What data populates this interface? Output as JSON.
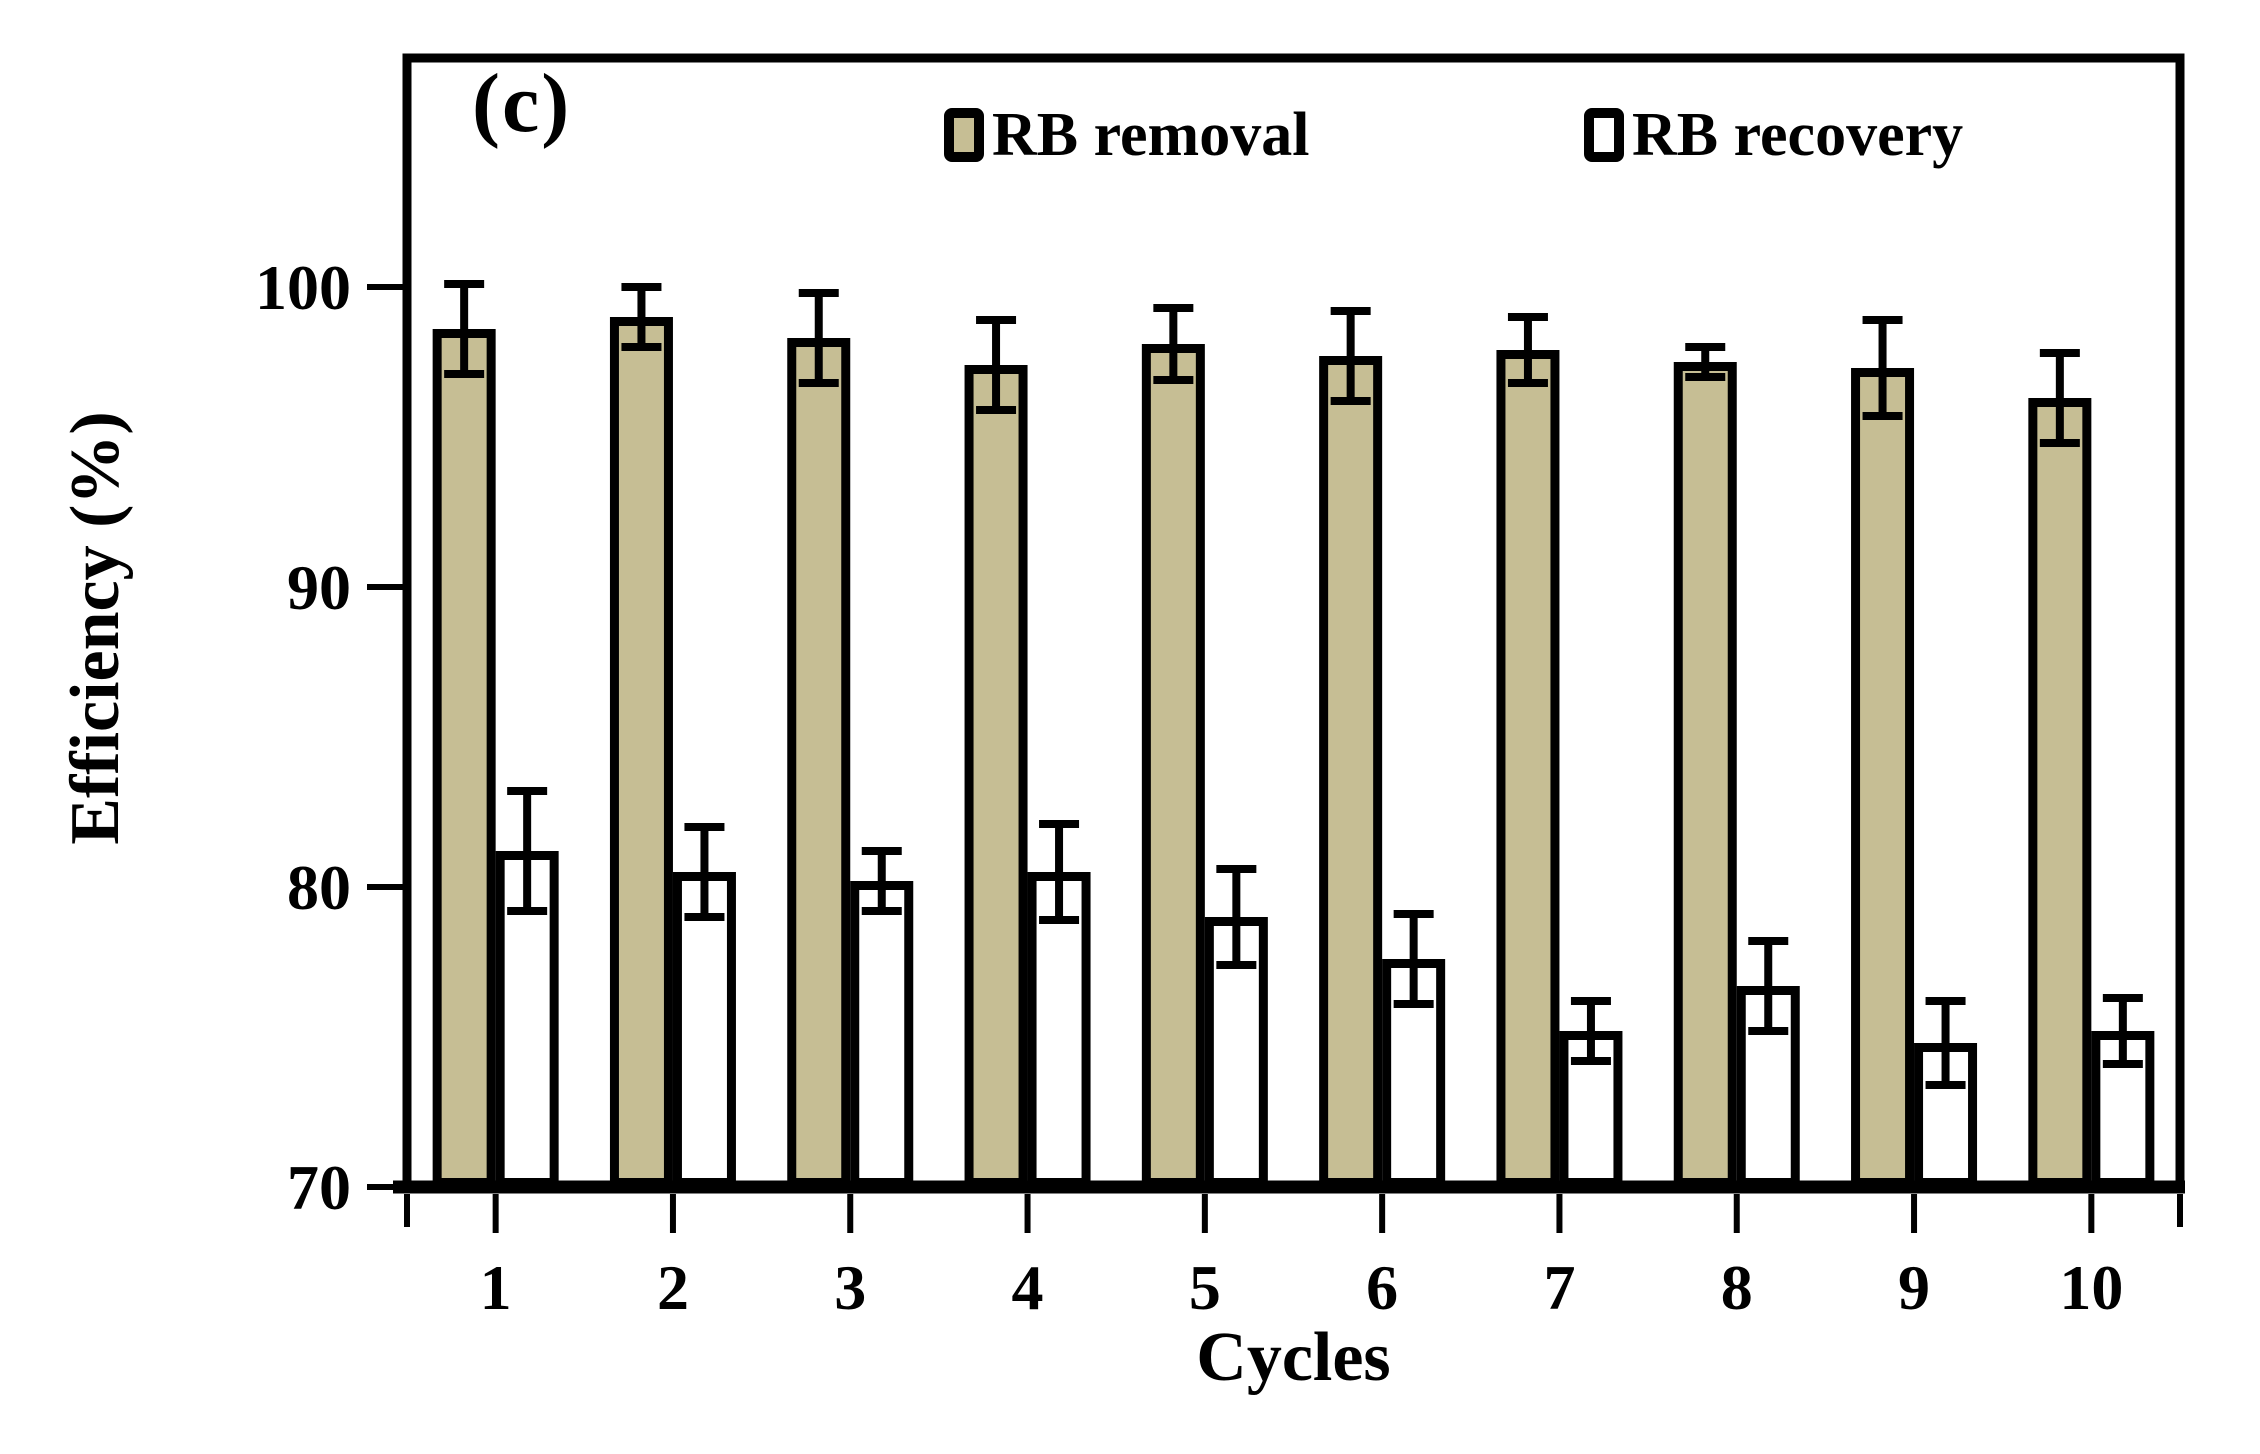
{
  "figure": {
    "panel_label": "(c)",
    "background": "#ffffff",
    "axis_color": "#000000",
    "text_color": "#000000"
  },
  "legend": [
    {
      "label": "RB removal",
      "fill": "#c6be94"
    },
    {
      "label": "RB recovery",
      "fill": "#ffffff"
    }
  ],
  "chart_data": {
    "type": "bar",
    "title": "",
    "xlabel": "Cycles",
    "ylabel": "Efficiency (%)",
    "categories": [
      "1",
      "2",
      "3",
      "4",
      "5",
      "6",
      "7",
      "8",
      "9",
      "10"
    ],
    "series": [
      {
        "name": "RB removal",
        "fill": "#c6be94",
        "border": "#000000",
        "values": [
          98.6,
          99.0,
          98.3,
          97.4,
          98.1,
          97.7,
          97.9,
          97.5,
          97.3,
          96.3
        ],
        "errors": [
          1.5,
          1.0,
          1.5,
          1.5,
          1.2,
          1.5,
          1.1,
          0.5,
          1.6,
          1.5
        ]
      },
      {
        "name": "RB recovery",
        "fill": "#ffffff",
        "border": "#000000",
        "values": [
          81.2,
          80.5,
          80.2,
          80.5,
          79.0,
          77.6,
          75.2,
          76.7,
          74.8,
          75.2
        ],
        "errors": [
          2.0,
          1.5,
          1.0,
          1.6,
          1.6,
          1.5,
          1.0,
          1.5,
          1.4,
          1.1
        ]
      }
    ],
    "ylim": [
      70,
      100
    ],
    "yticks": [
      70,
      80,
      90,
      100
    ],
    "grid": false,
    "minor_ticks": false,
    "error_bars": true,
    "legend_position": "top-inside"
  }
}
